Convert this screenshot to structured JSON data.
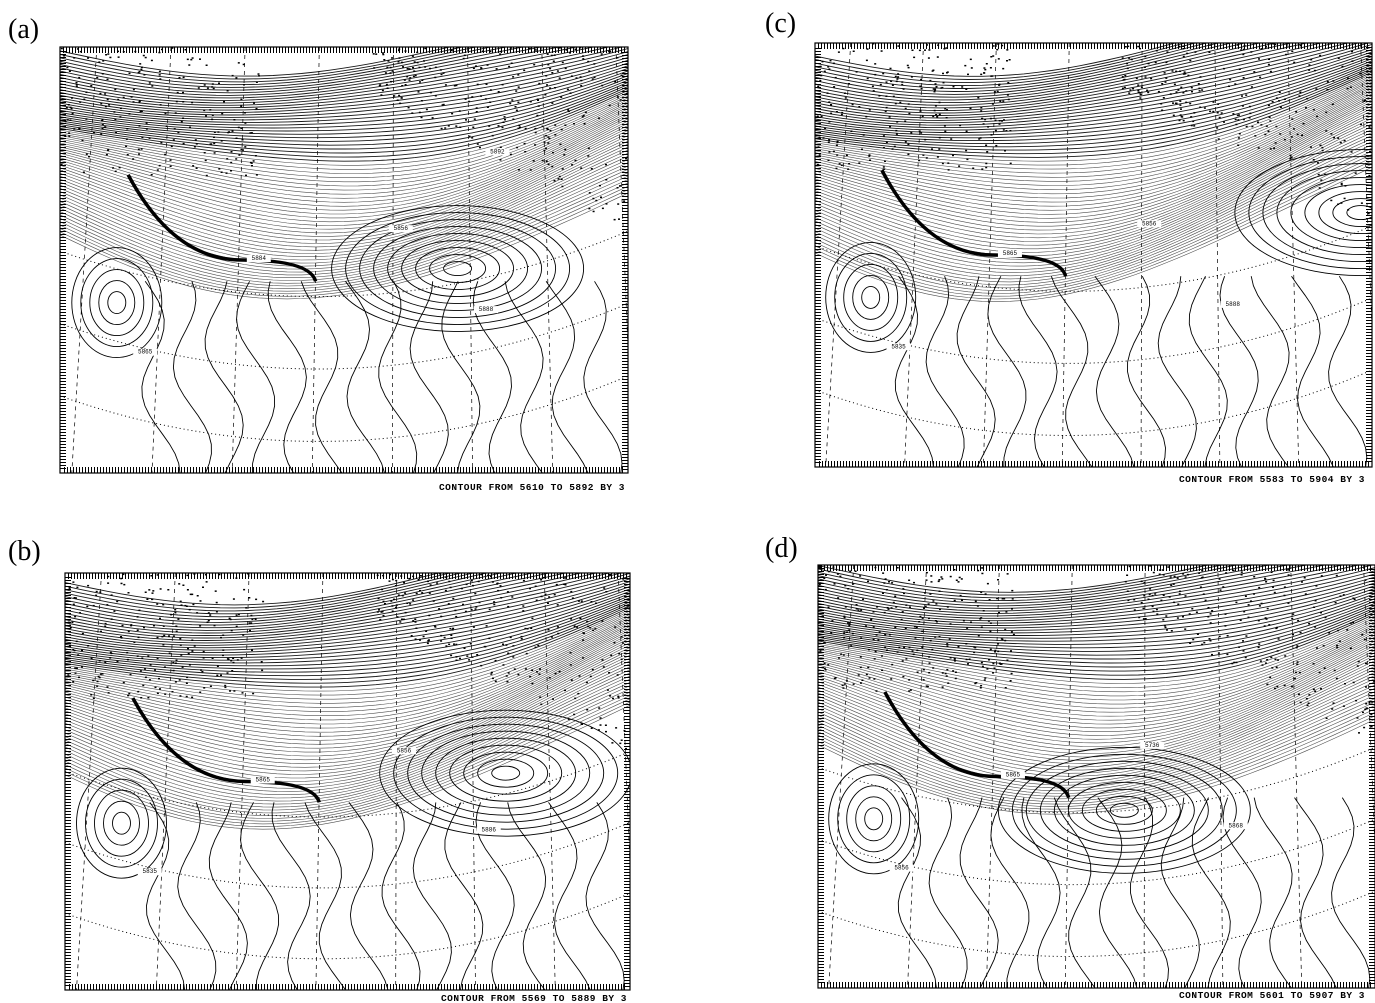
{
  "figure": {
    "panels": [
      {
        "label": "(a)",
        "caption": "CONTOUR FROM 5610 TO 5892 BY 3",
        "contour_labels": [
          "5888",
          "5884",
          "5865",
          "5856",
          "5892"
        ]
      },
      {
        "label": "(b)",
        "caption": "CONTOUR FROM 5569 TO 5889 BY 3",
        "contour_labels": [
          "5886",
          "5865",
          "5835",
          "5856"
        ]
      },
      {
        "label": "(c)",
        "caption": "CONTOUR FROM 5583 TO 5904 BY 3",
        "contour_labels": [
          "5888",
          "5865",
          "5835",
          "5856"
        ]
      },
      {
        "label": "(d)",
        "caption": "CONTOUR FROM 5601 TO 5907 BY 3",
        "contour_labels": [
          "5868",
          "5865",
          "5856",
          "5736"
        ]
      }
    ]
  }
}
